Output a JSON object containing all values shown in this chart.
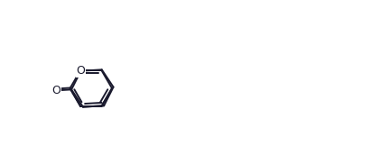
{
  "bg_color": "#ffffff",
  "bond_color": "#1a1a2e",
  "atom_color": "#1a1a2e",
  "lw": 1.4,
  "figw": 4.22,
  "figh": 1.62,
  "dpi": 100
}
